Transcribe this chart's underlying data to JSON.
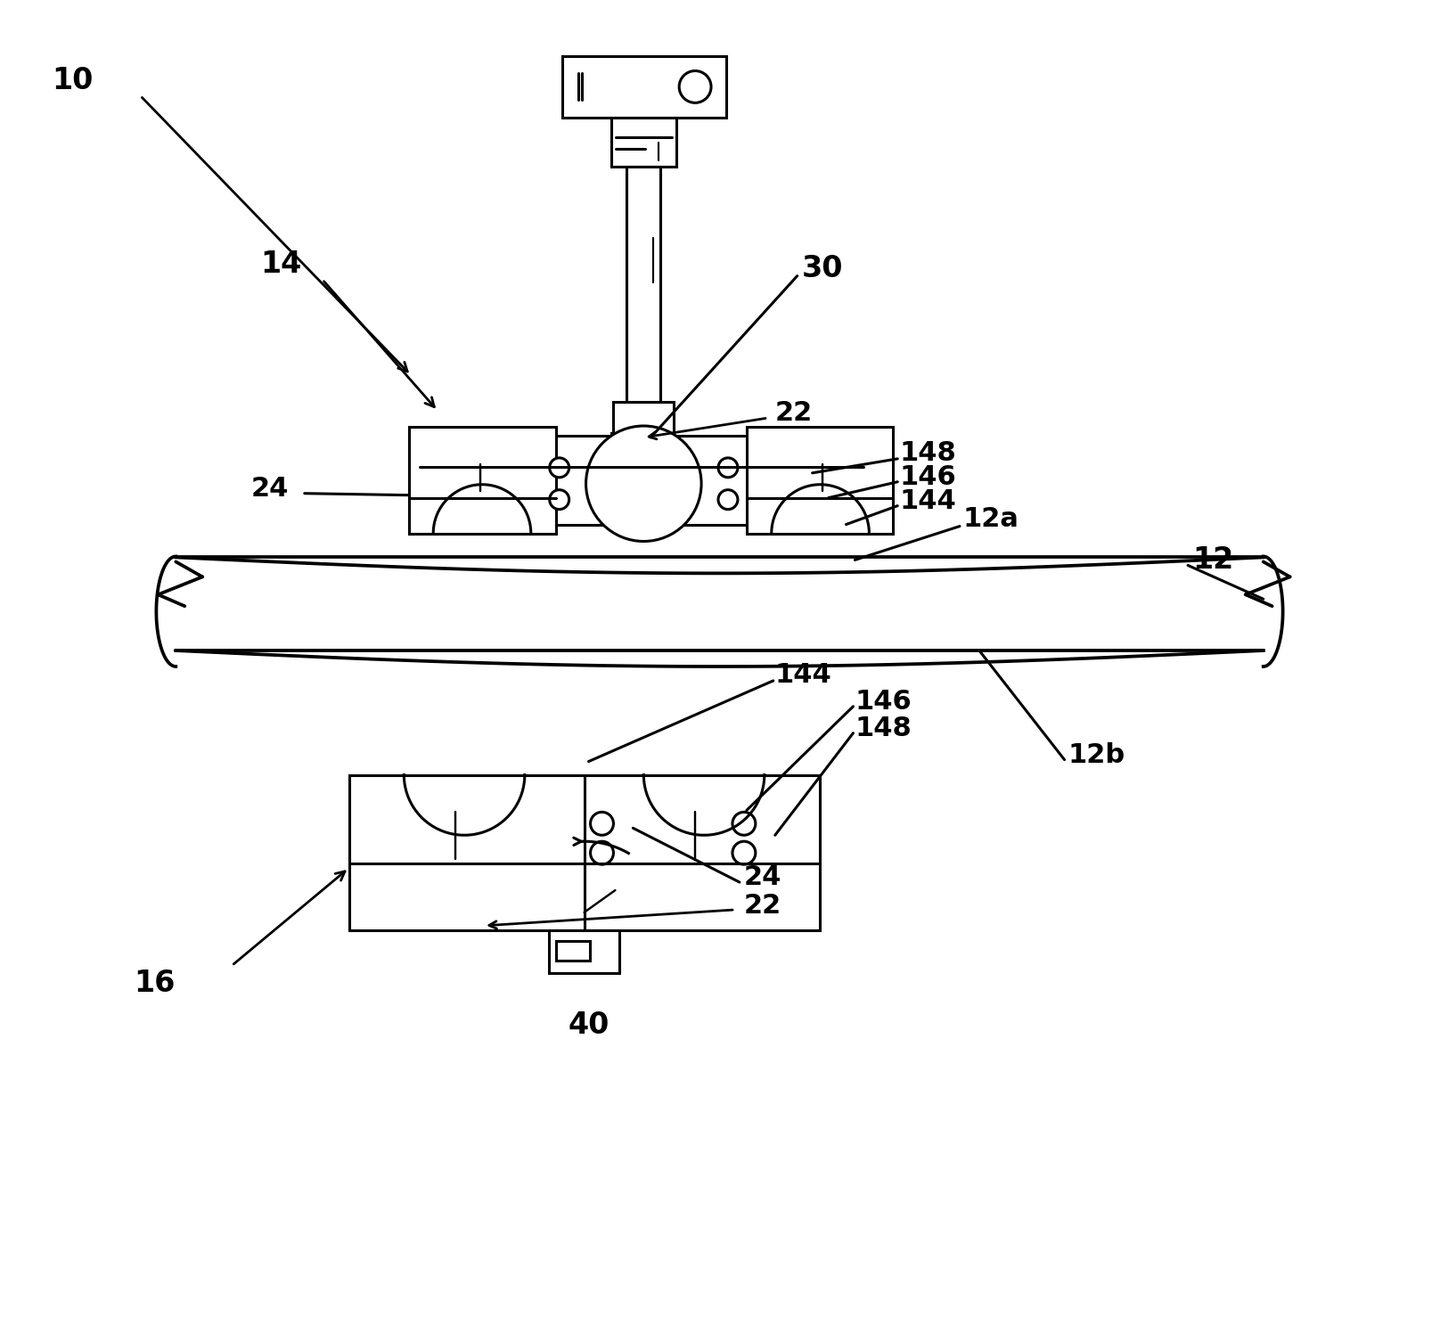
{
  "bg_color": "#ffffff",
  "line_color": "#000000",
  "fontsize": 20,
  "lw": 2.2,
  "fig_w": 16.16,
  "fig_h": 14.78,
  "dpi": 100
}
